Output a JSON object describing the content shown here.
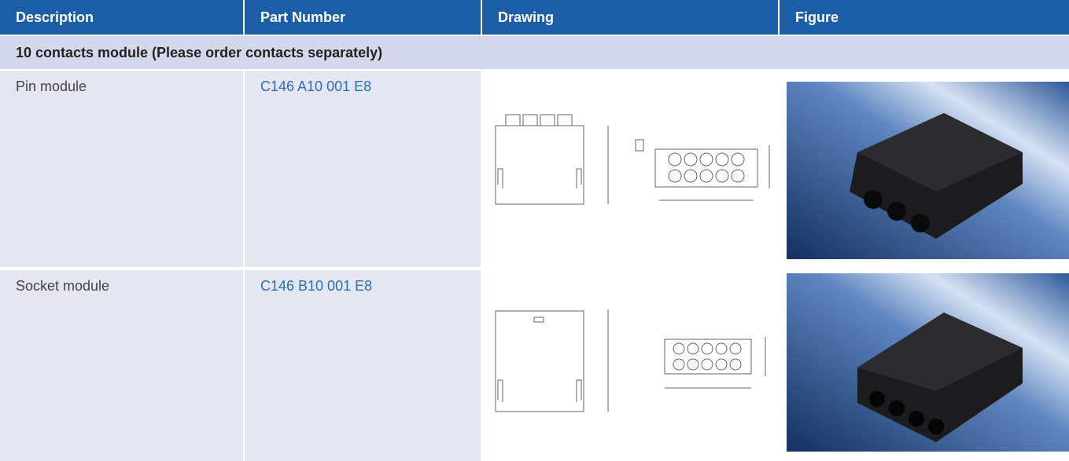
{
  "table": {
    "header": [
      "Description",
      "Part Number",
      "Drawing",
      "Figure"
    ],
    "section": "10 contacts module (Please order contacts separately)",
    "rows": [
      [
        "Pin module",
        "C146 A10 001 E8"
      ],
      [
        "Socket module",
        "C146 B10 001 E8"
      ]
    ]
  }
}
